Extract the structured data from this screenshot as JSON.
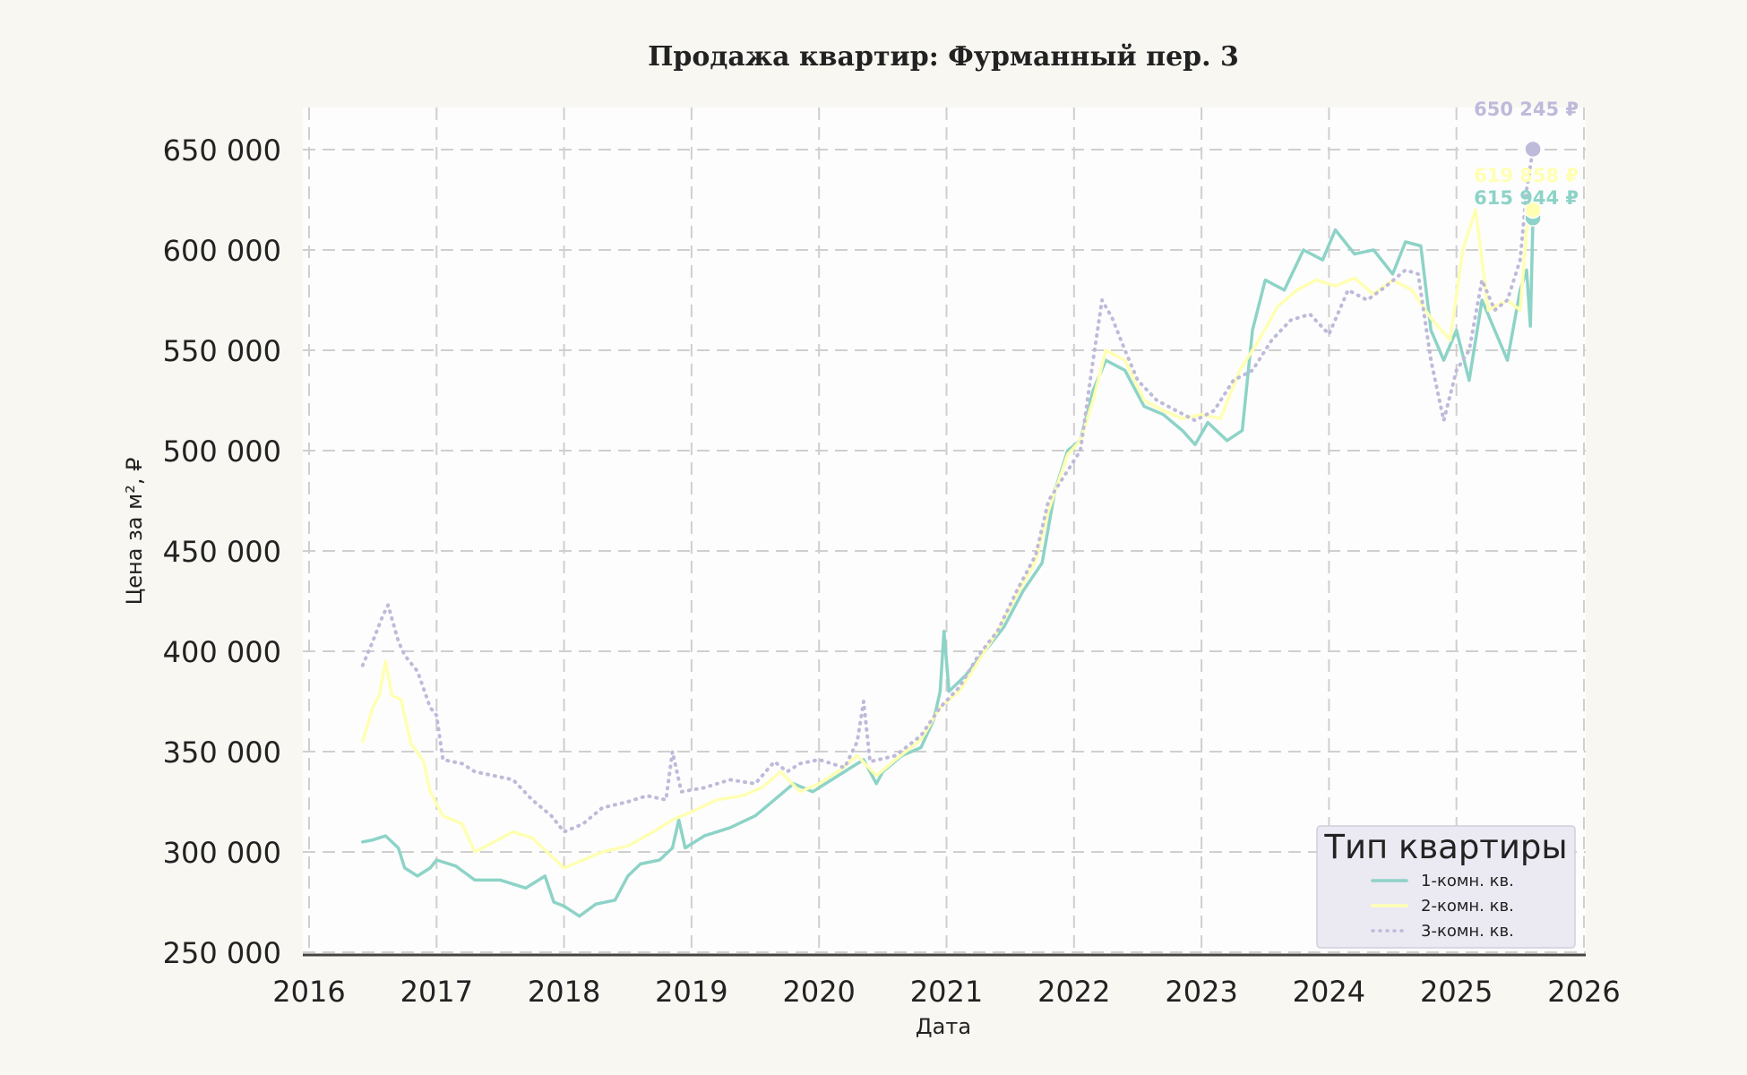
{
  "chart_data": {
    "type": "line",
    "title": "Продажа квартир: Фурманный пер. 3",
    "xlabel": "Дата",
    "ylabel": "Цена за м², ₽",
    "xlim": [
      2016,
      2026
    ],
    "ylim": [
      250000,
      670000
    ],
    "x_ticks": [
      "2016",
      "2017",
      "2018",
      "2019",
      "2020",
      "2021",
      "2022",
      "2023",
      "2024",
      "2025",
      "2026"
    ],
    "y_ticks": [
      "250 000",
      "300 000",
      "350 000",
      "400 000",
      "450 000",
      "500 000",
      "550 000",
      "600 000",
      "650 000"
    ],
    "grid": true,
    "legend": {
      "title": "Тип квартиры",
      "position": "bottom-right"
    },
    "series": [
      {
        "name": "1-комн. кв.",
        "color": "#8dd3c7",
        "style": "solid",
        "end_label": "615 944 ₽",
        "end_value": 615944,
        "points": [
          [
            2016.42,
            305000
          ],
          [
            2016.5,
            306000
          ],
          [
            2016.6,
            308000
          ],
          [
            2016.7,
            302000
          ],
          [
            2016.75,
            292000
          ],
          [
            2016.85,
            288000
          ],
          [
            2016.95,
            292000
          ],
          [
            2017.0,
            296000
          ],
          [
            2017.15,
            293000
          ],
          [
            2017.3,
            286000
          ],
          [
            2017.5,
            286000
          ],
          [
            2017.7,
            282000
          ],
          [
            2017.85,
            288000
          ],
          [
            2017.92,
            275000
          ],
          [
            2018.0,
            273000
          ],
          [
            2018.12,
            268000
          ],
          [
            2018.25,
            274000
          ],
          [
            2018.4,
            276000
          ],
          [
            2018.5,
            288000
          ],
          [
            2018.6,
            294000
          ],
          [
            2018.75,
            296000
          ],
          [
            2018.85,
            302000
          ],
          [
            2018.9,
            316000
          ],
          [
            2018.95,
            302000
          ],
          [
            2019.1,
            308000
          ],
          [
            2019.3,
            312000
          ],
          [
            2019.5,
            318000
          ],
          [
            2019.65,
            326000
          ],
          [
            2019.8,
            334000
          ],
          [
            2019.95,
            330000
          ],
          [
            2020.1,
            336000
          ],
          [
            2020.25,
            342000
          ],
          [
            2020.35,
            346000
          ],
          [
            2020.45,
            334000
          ],
          [
            2020.5,
            340000
          ],
          [
            2020.65,
            348000
          ],
          [
            2020.8,
            352000
          ],
          [
            2020.9,
            366000
          ],
          [
            2020.95,
            380000
          ],
          [
            2020.98,
            410000
          ],
          [
            2021.02,
            380000
          ],
          [
            2021.15,
            388000
          ],
          [
            2021.3,
            400000
          ],
          [
            2021.45,
            412000
          ],
          [
            2021.6,
            430000
          ],
          [
            2021.75,
            444000
          ],
          [
            2021.85,
            480000
          ],
          [
            2021.95,
            500000
          ],
          [
            2022.05,
            505000
          ],
          [
            2022.15,
            530000
          ],
          [
            2022.25,
            545000
          ],
          [
            2022.4,
            540000
          ],
          [
            2022.55,
            522000
          ],
          [
            2022.7,
            518000
          ],
          [
            2022.85,
            510000
          ],
          [
            2022.95,
            503000
          ],
          [
            2023.05,
            514000
          ],
          [
            2023.2,
            505000
          ],
          [
            2023.32,
            510000
          ],
          [
            2023.4,
            560000
          ],
          [
            2023.5,
            585000
          ],
          [
            2023.65,
            580000
          ],
          [
            2023.8,
            600000
          ],
          [
            2023.95,
            595000
          ],
          [
            2024.05,
            610000
          ],
          [
            2024.2,
            598000
          ],
          [
            2024.35,
            600000
          ],
          [
            2024.5,
            588000
          ],
          [
            2024.6,
            604000
          ],
          [
            2024.72,
            602000
          ],
          [
            2024.8,
            560000
          ],
          [
            2024.9,
            545000
          ],
          [
            2025.0,
            560000
          ],
          [
            2025.1,
            535000
          ],
          [
            2025.2,
            575000
          ],
          [
            2025.3,
            560000
          ],
          [
            2025.4,
            545000
          ],
          [
            2025.5,
            580000
          ],
          [
            2025.55,
            590000
          ],
          [
            2025.58,
            562000
          ],
          [
            2025.6,
            615944
          ]
        ]
      },
      {
        "name": "2-комн. кв.",
        "color": "#ffffb3",
        "style": "solid",
        "end_label": "619 858 ₽",
        "end_value": 619858,
        "points": [
          [
            2016.42,
            355000
          ],
          [
            2016.5,
            372000
          ],
          [
            2016.55,
            378000
          ],
          [
            2016.6,
            395000
          ],
          [
            2016.65,
            378000
          ],
          [
            2016.72,
            376000
          ],
          [
            2016.8,
            354000
          ],
          [
            2016.9,
            345000
          ],
          [
            2016.95,
            330000
          ],
          [
            2017.05,
            318000
          ],
          [
            2017.2,
            314000
          ],
          [
            2017.3,
            300000
          ],
          [
            2017.45,
            305000
          ],
          [
            2017.6,
            310000
          ],
          [
            2017.75,
            307000
          ],
          [
            2017.9,
            298000
          ],
          [
            2018.0,
            292000
          ],
          [
            2018.15,
            296000
          ],
          [
            2018.3,
            300000
          ],
          [
            2018.5,
            303000
          ],
          [
            2018.7,
            310000
          ],
          [
            2018.85,
            316000
          ],
          [
            2019.0,
            320000
          ],
          [
            2019.2,
            326000
          ],
          [
            2019.4,
            328000
          ],
          [
            2019.55,
            332000
          ],
          [
            2019.7,
            340000
          ],
          [
            2019.85,
            330000
          ],
          [
            2020.0,
            334000
          ],
          [
            2020.15,
            340000
          ],
          [
            2020.3,
            348000
          ],
          [
            2020.45,
            338000
          ],
          [
            2020.6,
            346000
          ],
          [
            2020.8,
            356000
          ],
          [
            2020.95,
            372000
          ],
          [
            2021.1,
            380000
          ],
          [
            2021.25,
            395000
          ],
          [
            2021.4,
            410000
          ],
          [
            2021.55,
            428000
          ],
          [
            2021.7,
            445000
          ],
          [
            2021.8,
            470000
          ],
          [
            2021.95,
            498000
          ],
          [
            2022.05,
            505000
          ],
          [
            2022.15,
            525000
          ],
          [
            2022.25,
            550000
          ],
          [
            2022.4,
            545000
          ],
          [
            2022.55,
            525000
          ],
          [
            2022.7,
            520000
          ],
          [
            2022.85,
            516000
          ],
          [
            2023.0,
            518000
          ],
          [
            2023.15,
            516000
          ],
          [
            2023.3,
            540000
          ],
          [
            2023.45,
            555000
          ],
          [
            2023.6,
            572000
          ],
          [
            2023.75,
            580000
          ],
          [
            2023.9,
            585000
          ],
          [
            2024.05,
            582000
          ],
          [
            2024.2,
            586000
          ],
          [
            2024.35,
            578000
          ],
          [
            2024.5,
            585000
          ],
          [
            2024.65,
            580000
          ],
          [
            2024.8,
            566000
          ],
          [
            2024.95,
            555000
          ],
          [
            2025.05,
            600000
          ],
          [
            2025.15,
            620000
          ],
          [
            2025.25,
            570000
          ],
          [
            2025.4,
            575000
          ],
          [
            2025.5,
            570000
          ],
          [
            2025.55,
            610000
          ],
          [
            2025.6,
            619858
          ]
        ]
      },
      {
        "name": "3-комн. кв.",
        "color": "#bebada",
        "style": "dotted",
        "end_label": "650 245 ₽",
        "end_value": 650245,
        "points": [
          [
            2016.42,
            393000
          ],
          [
            2016.5,
            405000
          ],
          [
            2016.58,
            418000
          ],
          [
            2016.62,
            423000
          ],
          [
            2016.7,
            405000
          ],
          [
            2016.75,
            398000
          ],
          [
            2016.85,
            390000
          ],
          [
            2016.95,
            372000
          ],
          [
            2017.0,
            368000
          ],
          [
            2017.05,
            346000
          ],
          [
            2017.2,
            344000
          ],
          [
            2017.3,
            340000
          ],
          [
            2017.45,
            338000
          ],
          [
            2017.6,
            336000
          ],
          [
            2017.75,
            326000
          ],
          [
            2017.9,
            318000
          ],
          [
            2018.0,
            310000
          ],
          [
            2018.15,
            314000
          ],
          [
            2018.3,
            322000
          ],
          [
            2018.5,
            325000
          ],
          [
            2018.65,
            328000
          ],
          [
            2018.8,
            326000
          ],
          [
            2018.85,
            350000
          ],
          [
            2018.92,
            330000
          ],
          [
            2019.1,
            332000
          ],
          [
            2019.3,
            336000
          ],
          [
            2019.5,
            334000
          ],
          [
            2019.65,
            345000
          ],
          [
            2019.75,
            340000
          ],
          [
            2019.85,
            344000
          ],
          [
            2020.0,
            346000
          ],
          [
            2020.2,
            342000
          ],
          [
            2020.3,
            355000
          ],
          [
            2020.35,
            375000
          ],
          [
            2020.4,
            345000
          ],
          [
            2020.6,
            348000
          ],
          [
            2020.8,
            358000
          ],
          [
            2020.95,
            372000
          ],
          [
            2021.1,
            382000
          ],
          [
            2021.25,
            398000
          ],
          [
            2021.4,
            410000
          ],
          [
            2021.55,
            430000
          ],
          [
            2021.7,
            448000
          ],
          [
            2021.8,
            475000
          ],
          [
            2021.95,
            490000
          ],
          [
            2022.05,
            500000
          ],
          [
            2022.15,
            545000
          ],
          [
            2022.22,
            575000
          ],
          [
            2022.3,
            566000
          ],
          [
            2022.4,
            550000
          ],
          [
            2022.5,
            535000
          ],
          [
            2022.65,
            525000
          ],
          [
            2022.8,
            520000
          ],
          [
            2022.95,
            515000
          ],
          [
            2023.1,
            520000
          ],
          [
            2023.25,
            535000
          ],
          [
            2023.4,
            540000
          ],
          [
            2023.55,
            555000
          ],
          [
            2023.7,
            565000
          ],
          [
            2023.85,
            568000
          ],
          [
            2024.0,
            558000
          ],
          [
            2024.15,
            580000
          ],
          [
            2024.3,
            575000
          ],
          [
            2024.45,
            582000
          ],
          [
            2024.6,
            590000
          ],
          [
            2024.7,
            588000
          ],
          [
            2024.8,
            545000
          ],
          [
            2024.9,
            515000
          ],
          [
            2025.0,
            540000
          ],
          [
            2025.1,
            550000
          ],
          [
            2025.2,
            585000
          ],
          [
            2025.3,
            570000
          ],
          [
            2025.4,
            575000
          ],
          [
            2025.5,
            595000
          ],
          [
            2025.55,
            630000
          ],
          [
            2025.6,
            650245
          ]
        ]
      }
    ]
  }
}
